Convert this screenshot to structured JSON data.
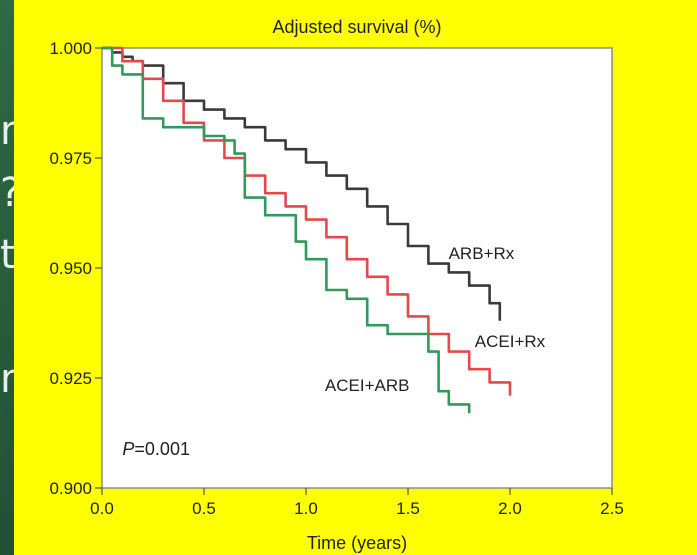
{
  "background": {
    "slide_color": "#2d6a45",
    "partial_text": "n\n?\nt\n\nn"
  },
  "chart_data": {
    "type": "line",
    "title": "Adjusted survival (%)",
    "xlabel": "Time (years)",
    "ylabel": "",
    "xlim": [
      0,
      2.5
    ],
    "ylim": [
      0.9,
      1.0
    ],
    "x_ticks": [
      "0.0",
      "0.5",
      "1.0",
      "1.5",
      "2.0",
      "2.5"
    ],
    "y_ticks": [
      "0.900",
      "0.925",
      "0.950",
      "0.975",
      "1.000"
    ],
    "annotation": "P=0.001",
    "grid": false,
    "series": [
      {
        "name": "ARB+Rx",
        "color": "#3a3a3a",
        "x": [
          0,
          0.05,
          0.1,
          0.15,
          0.2,
          0.3,
          0.4,
          0.5,
          0.6,
          0.7,
          0.8,
          0.9,
          1.0,
          1.1,
          1.2,
          1.3,
          1.4,
          1.5,
          1.6,
          1.7,
          1.8,
          1.9,
          1.95
        ],
        "y": [
          1.0,
          0.999,
          0.998,
          0.997,
          0.996,
          0.992,
          0.988,
          0.986,
          0.984,
          0.982,
          0.979,
          0.977,
          0.974,
          0.971,
          0.968,
          0.964,
          0.96,
          0.955,
          0.951,
          0.949,
          0.946,
          0.942,
          0.938
        ]
      },
      {
        "name": "ACEI+Rx",
        "color": "#e24a4a",
        "x": [
          0,
          0.1,
          0.2,
          0.3,
          0.4,
          0.5,
          0.6,
          0.7,
          0.8,
          0.9,
          1.0,
          1.1,
          1.2,
          1.3,
          1.4,
          1.5,
          1.6,
          1.7,
          1.8,
          1.9,
          2.0
        ],
        "y": [
          1.0,
          0.997,
          0.993,
          0.988,
          0.983,
          0.979,
          0.975,
          0.971,
          0.967,
          0.964,
          0.961,
          0.957,
          0.952,
          0.948,
          0.944,
          0.939,
          0.935,
          0.931,
          0.927,
          0.924,
          0.921
        ]
      },
      {
        "name": "ACEI+ARB",
        "color": "#2f9a5a",
        "x": [
          0,
          0.05,
          0.1,
          0.2,
          0.3,
          0.4,
          0.5,
          0.6,
          0.65,
          0.7,
          0.8,
          0.9,
          0.95,
          1.0,
          1.1,
          1.2,
          1.3,
          1.4,
          1.5,
          1.6,
          1.65,
          1.7,
          1.8
        ],
        "y": [
          1.0,
          0.996,
          0.994,
          0.984,
          0.982,
          0.982,
          0.98,
          0.979,
          0.976,
          0.966,
          0.962,
          0.962,
          0.956,
          0.952,
          0.945,
          0.943,
          0.937,
          0.935,
          0.935,
          0.931,
          0.922,
          0.919,
          0.917
        ]
      }
    ],
    "series_labels": [
      {
        "series": "ARB+Rx",
        "x": 1.86,
        "y": 0.952,
        "anchor": "middle"
      },
      {
        "series": "ACEI+Rx",
        "x": 2.0,
        "y": 0.932,
        "anchor": "middle"
      },
      {
        "series": "ACEI+ARB",
        "x": 1.3,
        "y": 0.922,
        "anchor": "middle"
      }
    ]
  }
}
